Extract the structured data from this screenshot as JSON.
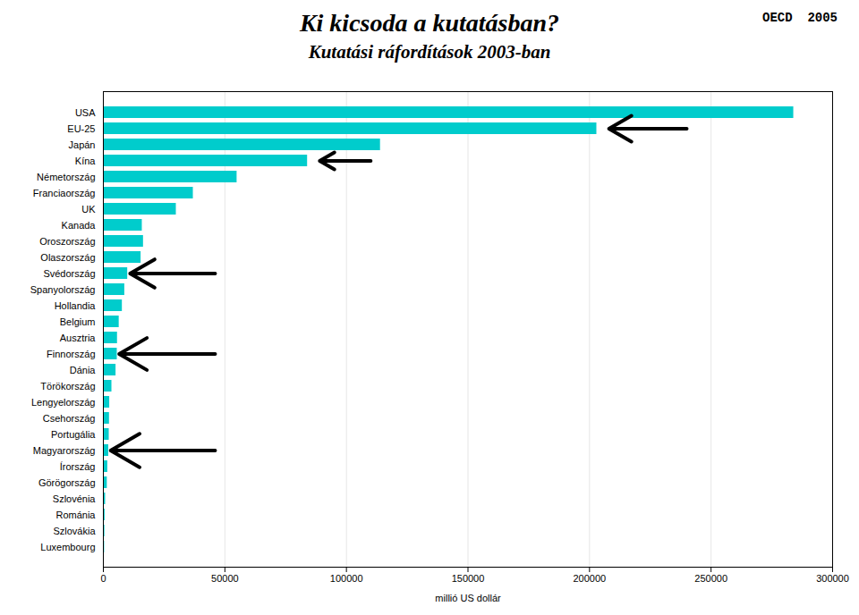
{
  "chart_data": {
    "type": "bar",
    "orientation": "horizontal",
    "title": "Ki kicsoda a kutatásban?",
    "subtitle": "Kutatási ráfordítások 2003-ban",
    "annotation": "OECD  2005",
    "xlabel": "millió US dollár",
    "categories": [
      "USA",
      "EU-25",
      "Japán",
      "Kína",
      "Németország",
      "Franciaország",
      "UK",
      "Kanada",
      "Oroszország",
      "Olaszország",
      "Svédország",
      "Spanyolország",
      "Hollandia",
      "Belgium",
      "Ausztria",
      "Finnország",
      "Dánia",
      "Törökország",
      "Lengyelország",
      "Csehország",
      "Portugália",
      "Magyarország",
      "Írország",
      "Görögország",
      "Szlovénia",
      "Románia",
      "Szlovákia",
      "Luxembourg"
    ],
    "values": [
      284000,
      203000,
      114000,
      84000,
      55000,
      37000,
      30000,
      16000,
      16500,
      15500,
      10000,
      8800,
      7800,
      6500,
      5800,
      5700,
      5200,
      3500,
      2600,
      2500,
      2400,
      2200,
      1800,
      1600,
      900,
      700,
      600,
      500
    ],
    "color": "#00CCCC",
    "xlim": [
      0,
      300000
    ],
    "xticks": [
      0,
      50000,
      100000,
      150000,
      200000,
      250000,
      300000
    ],
    "grid": true,
    "arrows": [
      {
        "category": "EU-25",
        "from": 240000,
        "to": 208000
      },
      {
        "category": "Kína",
        "from": 110000,
        "to": 89000
      },
      {
        "category": "Svédország",
        "from": 46000,
        "to": 11000
      },
      {
        "category": "Finnország",
        "from": 46000,
        "to": 6500
      },
      {
        "category": "Magyarország",
        "from": 46000,
        "to": 3000
      }
    ]
  }
}
